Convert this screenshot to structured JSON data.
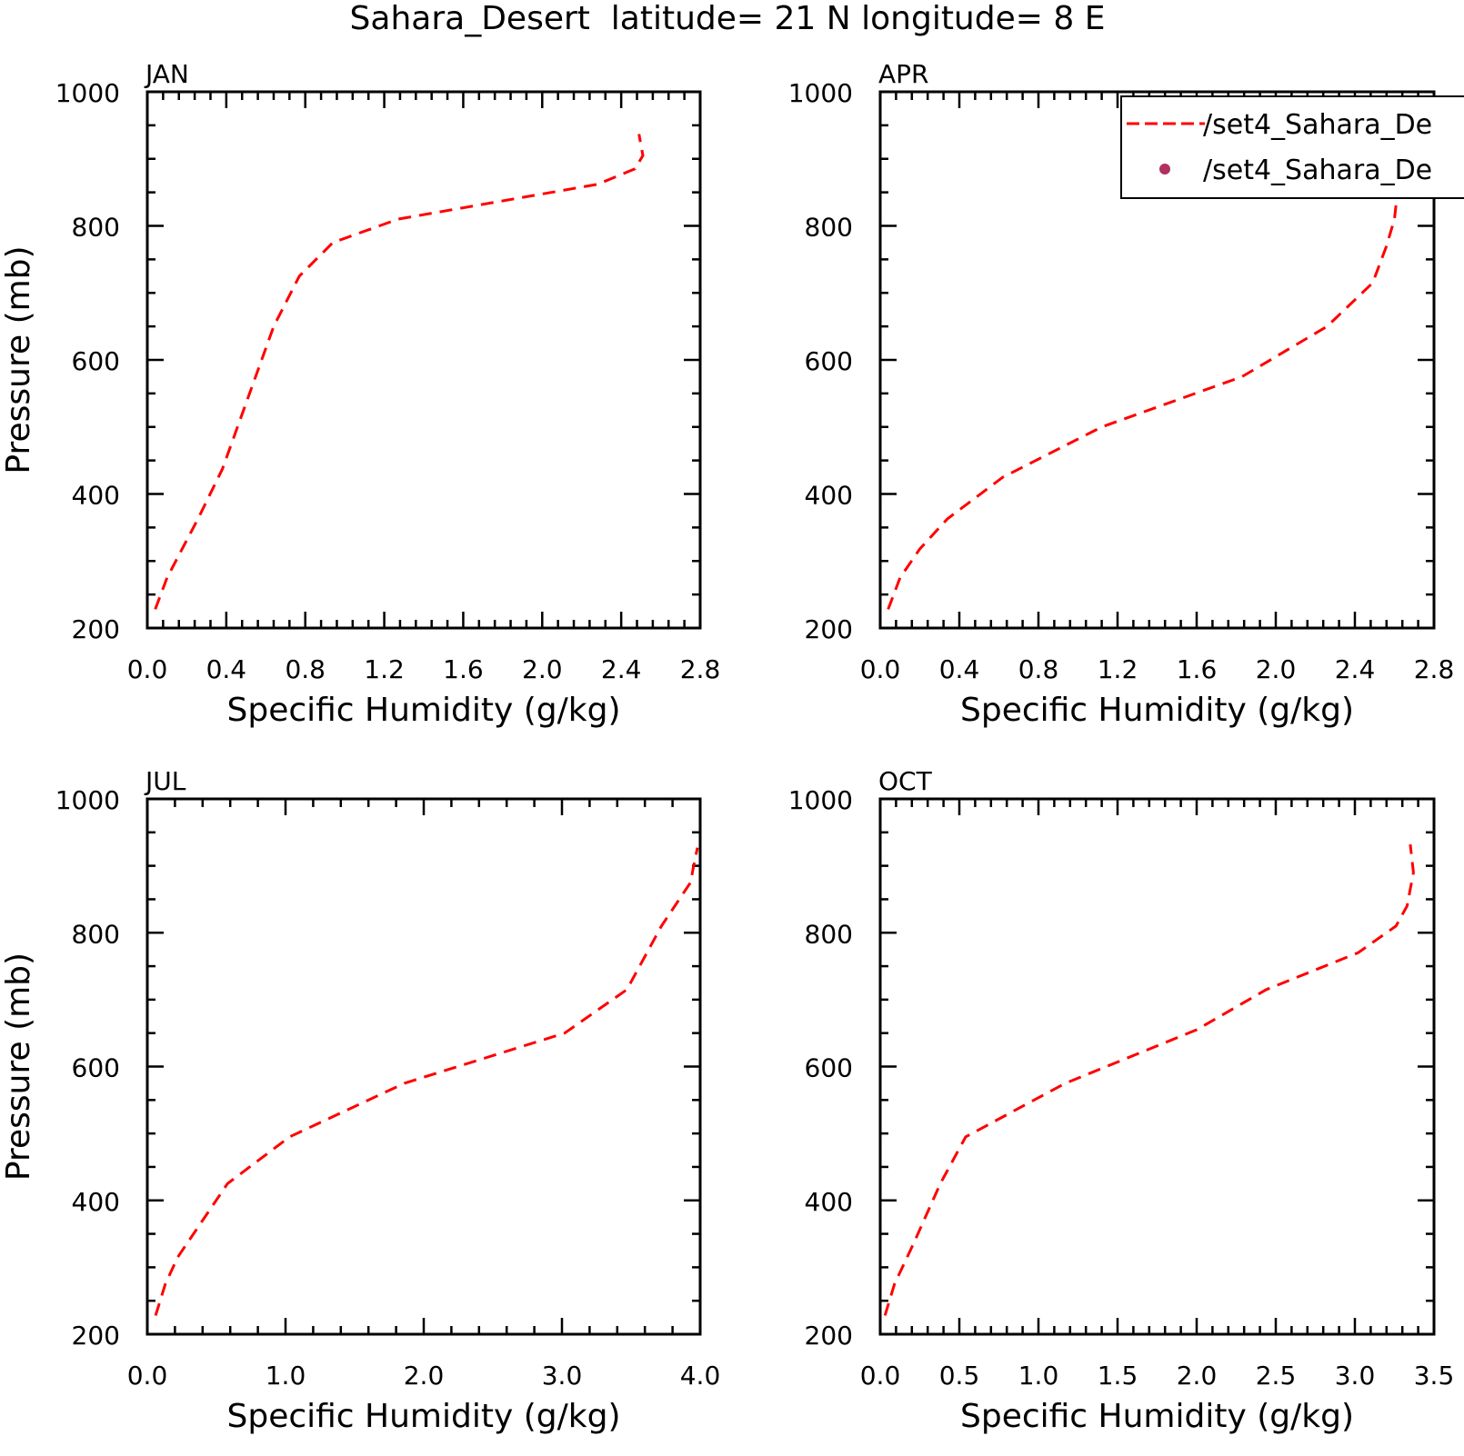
{
  "figure": {
    "title": "Sahara_Desert  latitude= 21 N longitude= 8 E"
  },
  "legend": {
    "entries": [
      {
        "label": "/set4_Sahara_De",
        "style": "dashed-line",
        "color": "#ff0000"
      },
      {
        "label": "/set4_Sahara_De",
        "style": "dot",
        "color": "#b03060"
      }
    ]
  },
  "chart_data": [
    {
      "type": "line",
      "panel_label": "JAN",
      "xlabel": "Specific Humidity (g/kg)",
      "ylabel": "Pressure (mb)",
      "xlim": [
        0,
        2.8
      ],
      "ylim": [
        1000,
        200
      ],
      "y_inverted": true,
      "x_ticks": [
        "0.0",
        "0.4",
        "0.8",
        "1.2",
        "1.6",
        "2.0",
        "2.4",
        "2.8"
      ],
      "y_ticks": [
        "200",
        "400",
        "600",
        "800",
        "1000"
      ],
      "series": [
        {
          "color": "#ff0000",
          "style": "dashed",
          "points": [
            [
              0.04,
              228
            ],
            [
              0.1,
              275
            ],
            [
              0.26,
              365
            ],
            [
              0.38,
              437
            ],
            [
              0.64,
              650
            ],
            [
              0.77,
              725
            ],
            [
              0.94,
              775
            ],
            [
              1.27,
              810
            ],
            [
              2.28,
              862
            ],
            [
              2.47,
              885
            ],
            [
              2.51,
              905
            ],
            [
              2.49,
              937
            ]
          ]
        }
      ]
    },
    {
      "type": "line",
      "panel_label": "APR",
      "xlabel": "Specific Humidity (g/kg)",
      "ylabel": "",
      "xlim": [
        0,
        2.8
      ],
      "ylim": [
        1000,
        200
      ],
      "y_inverted": true,
      "x_ticks": [
        "0.0",
        "0.4",
        "0.8",
        "1.2",
        "1.6",
        "2.0",
        "2.4",
        "2.8"
      ],
      "y_ticks": [
        "200",
        "400",
        "600",
        "800",
        "1000"
      ],
      "series": [
        {
          "color": "#ff0000",
          "style": "dashed",
          "points": [
            [
              0.04,
              228
            ],
            [
              0.1,
              275
            ],
            [
              0.2,
              318
            ],
            [
              0.34,
              363
            ],
            [
              0.62,
              425
            ],
            [
              1.12,
              500
            ],
            [
              1.83,
              575
            ],
            [
              2.26,
              650
            ],
            [
              2.49,
              715
            ],
            [
              2.56,
              770
            ],
            [
              2.6,
              810
            ],
            [
              2.63,
              890
            ],
            [
              2.63,
              927
            ]
          ]
        }
      ]
    },
    {
      "type": "line",
      "panel_label": "JUL",
      "xlabel": "Specific Humidity (g/kg)",
      "ylabel": "Pressure (mb)",
      "xlim": [
        0,
        4.0
      ],
      "ylim": [
        1000,
        200
      ],
      "y_inverted": true,
      "x_ticks": [
        "0.0",
        "1.0",
        "2.0",
        "3.0",
        "4.0"
      ],
      "y_ticks": [
        "200",
        "400",
        "600",
        "800",
        "1000"
      ],
      "series": [
        {
          "color": "#ff0000",
          "style": "dashed",
          "points": [
            [
              0.06,
              228
            ],
            [
              0.13,
              275
            ],
            [
              0.22,
              315
            ],
            [
              0.58,
              425
            ],
            [
              1.03,
              495
            ],
            [
              1.86,
              575
            ],
            [
              3.02,
              650
            ],
            [
              3.47,
              715
            ],
            [
              3.72,
              810
            ],
            [
              3.93,
              875
            ],
            [
              3.95,
              897
            ],
            [
              3.98,
              927
            ]
          ]
        }
      ]
    },
    {
      "type": "line",
      "panel_label": "OCT",
      "xlabel": "Specific Humidity (g/kg)",
      "ylabel": "",
      "xlim": [
        0,
        3.5
      ],
      "ylim": [
        1000,
        200
      ],
      "y_inverted": true,
      "x_ticks": [
        "0.0",
        "0.5",
        "1.0",
        "1.5",
        "2.0",
        "2.5",
        "3.0",
        "3.5"
      ],
      "y_ticks": [
        "200",
        "400",
        "600",
        "800",
        "1000"
      ],
      "series": [
        {
          "color": "#ff0000",
          "style": "dashed",
          "points": [
            [
              0.03,
              228
            ],
            [
              0.09,
              275
            ],
            [
              0.21,
              335
            ],
            [
              0.38,
              425
            ],
            [
              0.54,
              495
            ],
            [
              1.17,
              575
            ],
            [
              2.0,
              655
            ],
            [
              2.44,
              715
            ],
            [
              3.02,
              770
            ],
            [
              3.26,
              810
            ],
            [
              3.33,
              840
            ],
            [
              3.37,
              890
            ],
            [
              3.35,
              932
            ]
          ]
        }
      ]
    }
  ]
}
